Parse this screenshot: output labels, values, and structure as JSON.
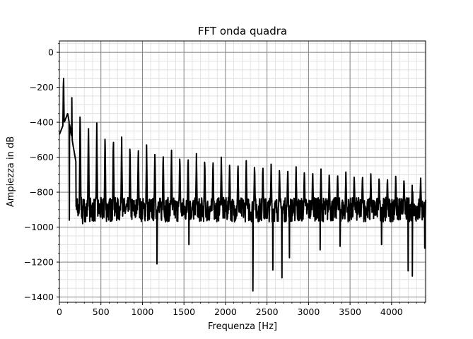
{
  "chart_data": {
    "type": "line",
    "title": "FFT onda quadra",
    "xlabel": "Frequenza [Hz]",
    "ylabel": "Ampiezza in dB",
    "xlim": [
      0,
      4410
    ],
    "ylim": [
      -1430,
      65
    ],
    "x_ticks": [
      0,
      500,
      1000,
      1500,
      2000,
      2500,
      3000,
      3500,
      4000
    ],
    "y_ticks": [
      0,
      -200,
      -400,
      -600,
      -800,
      -1000,
      -1200,
      -1400
    ],
    "x_tick_labels": [
      "0",
      "500",
      "1000",
      "1500",
      "2000",
      "2500",
      "3000",
      "3500",
      "4000"
    ],
    "y_tick_labels": [
      "0",
      "−200",
      "−400",
      "−600",
      "−800",
      "−1000",
      "−1200",
      "−1400"
    ],
    "grid": {
      "major": true,
      "minor": true
    },
    "series_color": "#000000",
    "grid_major_color": "#808080",
    "grid_minor_color": "#dcdcdc",
    "fundamental_hz": 50,
    "harmonic_peaks_hz": [
      50,
      150,
      250,
      350,
      450,
      550,
      650,
      750,
      850,
      950,
      1050,
      1150,
      1250,
      1350,
      1450,
      1550,
      1650,
      1750,
      1850,
      1950,
      2050,
      2150,
      2250,
      2350,
      2450,
      2550,
      2650,
      2750,
      2850,
      2950,
      3050,
      3150,
      3250,
      3350,
      3450,
      3550,
      3650,
      3750,
      3850,
      3950,
      4050,
      4150,
      4250,
      4350
    ],
    "harmonic_peaks_db": [
      -100,
      -260,
      -295,
      -370,
      -405,
      -440,
      -460,
      -485,
      -505,
      -515,
      -530,
      -540,
      -555,
      -560,
      -570,
      -575,
      -580,
      -590,
      -595,
      -600,
      -610,
      -615,
      -620,
      -625,
      -630,
      -640,
      -645,
      -650,
      -655,
      -660,
      -665,
      -668,
      -675,
      -680,
      -685,
      -688,
      -690,
      -695,
      -700,
      -705,
      -710,
      -712,
      -718,
      -720
    ],
    "noise_floor_db": -900,
    "deep_dips": [
      {
        "x": 120,
        "y": -960
      },
      {
        "x": 280,
        "y": -980
      },
      {
        "x": 1175,
        "y": -1210
      },
      {
        "x": 1560,
        "y": -1100
      },
      {
        "x": 2330,
        "y": -1365
      },
      {
        "x": 2570,
        "y": -1245
      },
      {
        "x": 2680,
        "y": -1290
      },
      {
        "x": 2770,
        "y": -1175
      },
      {
        "x": 3140,
        "y": -1130
      },
      {
        "x": 3380,
        "y": -1110
      },
      {
        "x": 3880,
        "y": -1100
      },
      {
        "x": 4200,
        "y": -1250
      },
      {
        "x": 4250,
        "y": -1280
      },
      {
        "x": 4400,
        "y": -1120
      }
    ]
  }
}
